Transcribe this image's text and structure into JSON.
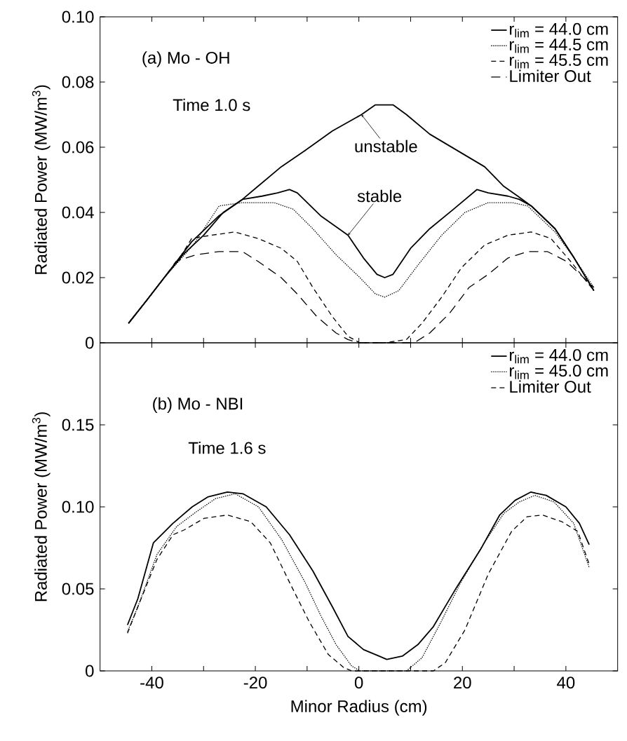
{
  "chart_data": [
    {
      "type": "line",
      "ylabel": "Radiated Power (MW/m$^{3}$)",
      "xlim": [
        -50,
        50
      ],
      "ylim": [
        0,
        0.1
      ],
      "xticks": [
        -40,
        {
          "value": -30,
          "label": null
        },
        -20,
        {
          "value": -10,
          "label": null
        },
        0,
        {
          "value": 10,
          "label": null
        },
        20,
        {
          "value": 30,
          "label": null
        },
        40
      ],
      "yticks": [
        0,
        0.02,
        0.04,
        0.06,
        0.08,
        {
          "value": 0.1,
          "label": "0.10"
        }
      ],
      "tick_labels": "y",
      "legend": "top right",
      "marker": "none",
      "grid": false,
      "annotations": [
        "(a) Mo - OH",
        "Time 1.0 s",
        {
          "text": "unstable",
          "x": 0.5,
          "y": 0.07
        },
        {
          "text": "stable",
          "x": -2.1,
          "y": 0.033
        }
      ],
      "series": [
        {
          "name": "r$_{lim}$ = 44.0 cm",
          "color": "#000000",
          "line_style": "solid",
          "x": [
            -44.5,
            -41,
            -37.6,
            -34,
            -30,
            -26.2,
            -22.5,
            -18.7,
            -15.7,
            -13.4,
            -11.9,
            -7.4,
            -2.1,
            0.9,
            3.5,
            5,
            6.6,
            10,
            13.7,
            18.3,
            22.8,
            25,
            28.8,
            31,
            33.3,
            37.9,
            41.6,
            45.4
          ],
          "values": [
            0.006,
            0.013,
            0.02,
            0.027,
            0.033,
            0.04,
            0.044,
            0.045,
            0.046,
            0.047,
            0.046,
            0.039,
            0.033,
            0.026,
            0.021,
            0.02,
            0.021,
            0.029,
            0.035,
            0.041,
            0.047,
            0.046,
            0.045,
            0.044,
            0.042,
            0.035,
            0.026,
            0.016
          ]
        },
        {
          "color": "#000000",
          "line_style": "solid",
          "x": [
            -44.5,
            -41,
            -37.6,
            -32.3,
            -27,
            -22.5,
            -19.5,
            -15,
            -10.4,
            -5.1,
            0.5,
            3.2,
            6.6,
            9.2,
            13.7,
            19,
            24.3,
            28,
            30.7,
            33.3,
            37.9,
            41.6,
            45.4
          ],
          "values": [
            0.006,
            0.013,
            0.02,
            0.031,
            0.039,
            0.044,
            0.048,
            0.054,
            0.059,
            0.065,
            0.07,
            0.073,
            0.073,
            0.07,
            0.064,
            0.059,
            0.054,
            0.048,
            0.045,
            0.042,
            0.035,
            0.026,
            0.016
          ]
        },
        {
          "name": "r$_{lim}$ = 44.5 cm",
          "color": "#000000",
          "line_style": "dotted",
          "x": [
            -44.5,
            -41,
            -37.6,
            -32,
            -27,
            -22.5,
            -16.4,
            -12.7,
            -8.9,
            -4.4,
            0.2,
            3.2,
            5,
            7.7,
            11.5,
            16,
            20.5,
            25,
            29.6,
            32.6,
            37.9,
            41.6,
            45.4
          ],
          "values": [
            0.006,
            0.013,
            0.02,
            0.03,
            0.042,
            0.043,
            0.043,
            0.041,
            0.035,
            0.027,
            0.02,
            0.015,
            0.014,
            0.016,
            0.024,
            0.033,
            0.04,
            0.043,
            0.043,
            0.042,
            0.034,
            0.026,
            0.017
          ]
        },
        {
          "name": "r$_{lim}$ = 45.5 cm",
          "color": "#000000",
          "line_style": "dashed",
          "x": [
            -44.5,
            -41,
            -37.6,
            -35,
            -32.3,
            -28.5,
            -24,
            -19.5,
            -15,
            -11.9,
            -8.9,
            -5.1,
            -2.1,
            0.2,
            5,
            9.2,
            12.2,
            16,
            19.8,
            24.3,
            28.8,
            33.3,
            37.1,
            40.9,
            45.4
          ],
          "values": [
            0.006,
            0.013,
            0.02,
            0.025,
            0.032,
            0.033,
            0.034,
            0.032,
            0.029,
            0.025,
            0.017,
            0.008,
            0.002,
            0,
            0,
            0.001,
            0.006,
            0.014,
            0.023,
            0.03,
            0.033,
            0.034,
            0.032,
            0.025,
            0.016
          ]
        },
        {
          "name": "Limiter Out",
          "color": "#000000",
          "line_style": "dashed",
          "x": [
            -44.5,
            -41,
            -37.6,
            -35.3,
            -31.5,
            -27,
            -22.5,
            -19.5,
            -15,
            -11.9,
            -8.1,
            -4.4,
            -2.1,
            0,
            5,
            10.7,
            13.7,
            17.5,
            21.3,
            25,
            28.8,
            32.6,
            36.4,
            40.1,
            45.4
          ],
          "values": [
            0.006,
            0.013,
            0.02,
            0.025,
            0.027,
            0.028,
            0.028,
            0.025,
            0.02,
            0.015,
            0.008,
            0.003,
            0.001,
            0,
            0,
            0,
            0.003,
            0.009,
            0.017,
            0.021,
            0.026,
            0.028,
            0.028,
            0.025,
            0.017
          ]
        }
      ]
    },
    {
      "type": "line",
      "xlabel": "Minor Radius (cm)",
      "ylabel": "Radiated Power (MW/m$^{3}$)",
      "xlim": [
        -50,
        50
      ],
      "ylim": [
        0,
        0.2
      ],
      "xticks": [
        -40,
        {
          "value": -30,
          "label": null
        },
        -20,
        {
          "value": -10,
          "label": null
        },
        0,
        {
          "value": 10,
          "label": null
        },
        20,
        {
          "value": 30,
          "label": null
        },
        40
      ],
      "yticks": [
        0,
        0.05,
        {
          "value": 0.1,
          "label": "0.10"
        },
        0.15
      ],
      "legend": "top right",
      "marker": "none",
      "grid": false,
      "annotations": [
        "(b) Mo - NBI",
        "Time 1.6 s"
      ],
      "series": [
        {
          "name": "r$_{lim}$ = 44.0 cm",
          "color": "#000000",
          "line_style": "solid",
          "x": [
            -44.7,
            -42.7,
            -39.7,
            -35.9,
            -32.2,
            -29.2,
            -25.4,
            -22.4,
            -17.9,
            -13.4,
            -8.9,
            -5.1,
            -2.1,
            0.9,
            3.9,
            5.4,
            8.4,
            11.4,
            14.4,
            18.9,
            23.5,
            27.2,
            30.2,
            33.2,
            36.2,
            40,
            42.6,
            44.5
          ],
          "values": [
            0.028,
            0.044,
            0.078,
            0.09,
            0.1,
            0.106,
            0.109,
            0.108,
            0.1,
            0.083,
            0.061,
            0.039,
            0.021,
            0.013,
            0.009,
            0.007,
            0.009,
            0.016,
            0.027,
            0.051,
            0.074,
            0.095,
            0.104,
            0.109,
            0.107,
            0.1,
            0.09,
            0.077
          ]
        },
        {
          "name": "r$_{lim}$ = 45.0 cm",
          "color": "#000000",
          "line_style": "dotted",
          "x": [
            -44.7,
            -42.7,
            -39,
            -35.2,
            -31.4,
            -27.7,
            -23.9,
            -19.4,
            -14.9,
            -10.4,
            -7.4,
            -4.4,
            -1.4,
            0.2,
            5,
            9.2,
            12.2,
            15.9,
            19.7,
            24.2,
            28,
            31,
            34,
            37.7,
            41.5,
            44.5
          ],
          "values": [
            0.024,
            0.039,
            0.071,
            0.088,
            0.097,
            0.105,
            0.108,
            0.1,
            0.08,
            0.054,
            0.034,
            0.016,
            0.003,
            0,
            0,
            0,
            0.008,
            0.03,
            0.054,
            0.078,
            0.096,
            0.103,
            0.107,
            0.103,
            0.09,
            0.063
          ]
        },
        {
          "name": "Limiter Out",
          "color": "#000000",
          "line_style": "dashed",
          "x": [
            -44.7,
            -42.7,
            -39,
            -35.9,
            -33.7,
            -29.9,
            -25.4,
            -20.9,
            -17.1,
            -13.4,
            -9.6,
            -5.9,
            -2.9,
            -1.4,
            5,
            14.4,
            16.7,
            20.5,
            25,
            29.5,
            32.5,
            35.5,
            39.2,
            42.3,
            44.5
          ],
          "values": [
            0.023,
            0.039,
            0.068,
            0.083,
            0.086,
            0.093,
            0.095,
            0.091,
            0.078,
            0.054,
            0.03,
            0.01,
            0.002,
            0,
            0,
            0,
            0.005,
            0.025,
            0.059,
            0.085,
            0.094,
            0.095,
            0.091,
            0.085,
            0.065
          ]
        }
      ]
    }
  ]
}
